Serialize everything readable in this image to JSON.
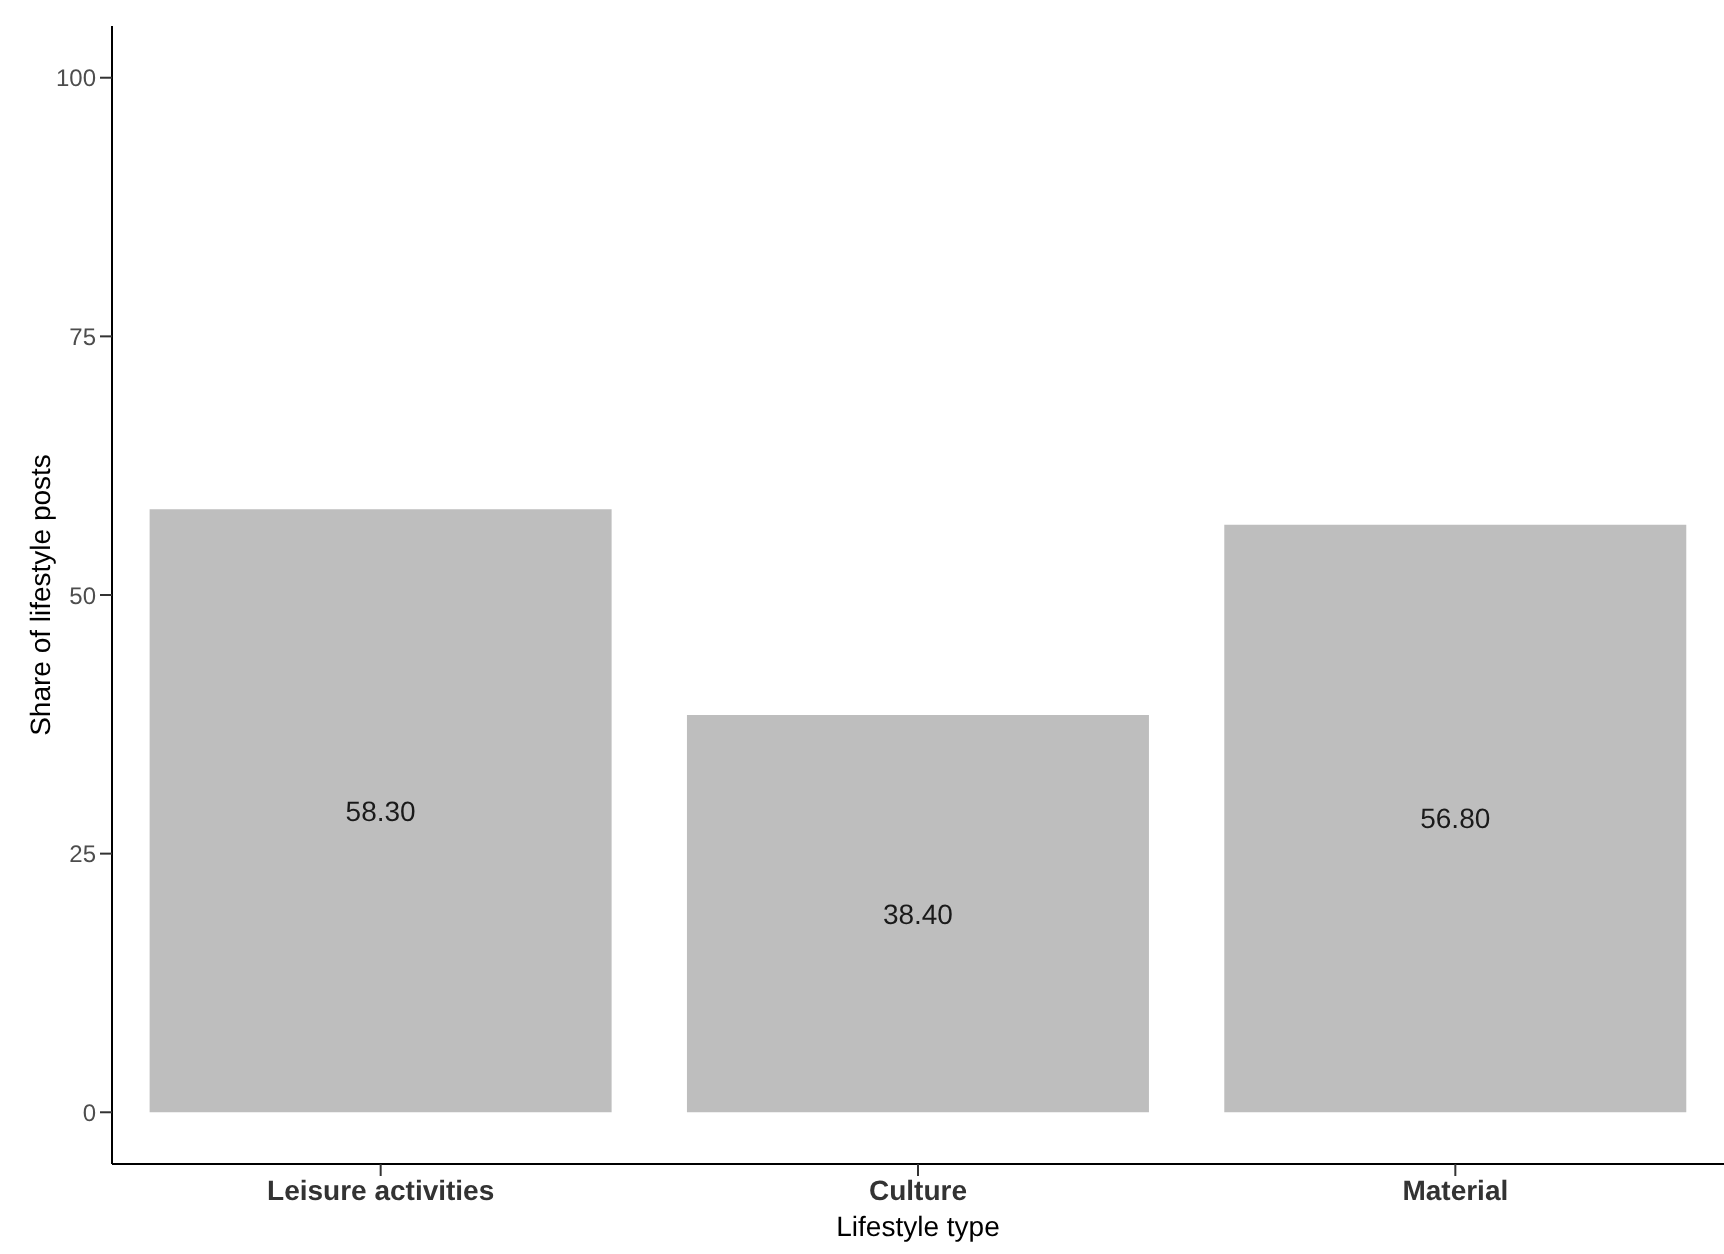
{
  "chart_data": {
    "type": "bar",
    "xlabel": "Lifestyle type",
    "ylabel": "Share of lifestyle posts",
    "categories": [
      "Leisure activities",
      "Culture",
      "Material"
    ],
    "values": [
      58.3,
      38.4,
      56.8
    ],
    "color": "#bebebe",
    "value_labels": [
      "58.30",
      "38.40",
      "56.80"
    ],
    "ylim": [
      -5,
      105
    ],
    "yticks": [
      0,
      25,
      50,
      75,
      100
    ]
  }
}
